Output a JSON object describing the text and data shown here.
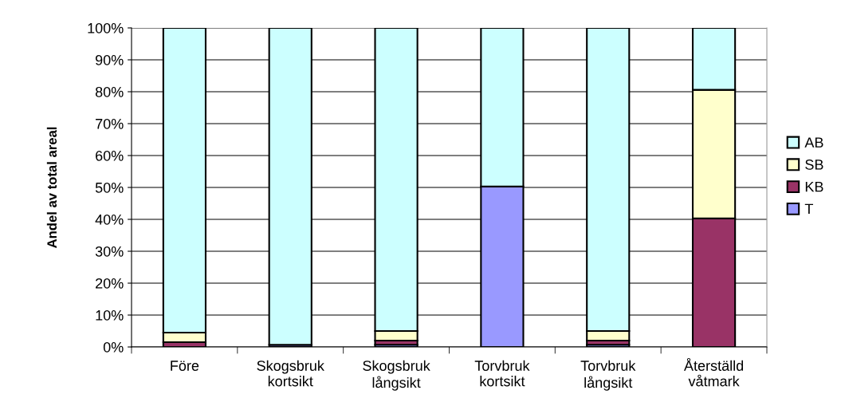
{
  "chart_data": {
    "type": "bar",
    "stacked": true,
    "ylabel": "Andel av total areal",
    "categories": [
      "Före",
      "Skogsbruk\nkortsikt",
      "Skogsbruk\nlångsikt",
      "Torvbruk\nkortsikt",
      "Torvbruk\nlångsikt",
      "Återställd\nvåtmark"
    ],
    "series": [
      {
        "name": "T",
        "color": "#9999ff",
        "values": [
          null,
          0.7,
          0.7,
          50.3,
          0.7,
          0
        ]
      },
      {
        "name": "KB",
        "color": "#993366",
        "values": [
          1.5,
          0,
          1.3,
          0,
          1.3,
          40.3
        ]
      },
      {
        "name": "SB",
        "color": "#ffffcc",
        "values": [
          3.0,
          0,
          3.0,
          0,
          3.0,
          40.3
        ]
      },
      {
        "name": "AB",
        "color": "#ccffff",
        "values": [
          95.5,
          99.3,
          95.0,
          49.7,
          95.0,
          19.4
        ]
      }
    ],
    "ylim": [
      0,
      100
    ],
    "yticks": [
      {
        "value": 0,
        "label": "0%"
      },
      {
        "value": 10,
        "label": "10%"
      },
      {
        "value": 20,
        "label": "20%"
      },
      {
        "value": 30,
        "label": "30%"
      },
      {
        "value": 40,
        "label": "40%"
      },
      {
        "value": 50,
        "label": "50%"
      },
      {
        "value": 60,
        "label": "60%"
      },
      {
        "value": 70,
        "label": "70%"
      },
      {
        "value": 80,
        "label": "80%"
      },
      {
        "value": 90,
        "label": "90%"
      },
      {
        "value": 100,
        "label": "100%"
      }
    ],
    "grid": "y",
    "legend": "right"
  }
}
